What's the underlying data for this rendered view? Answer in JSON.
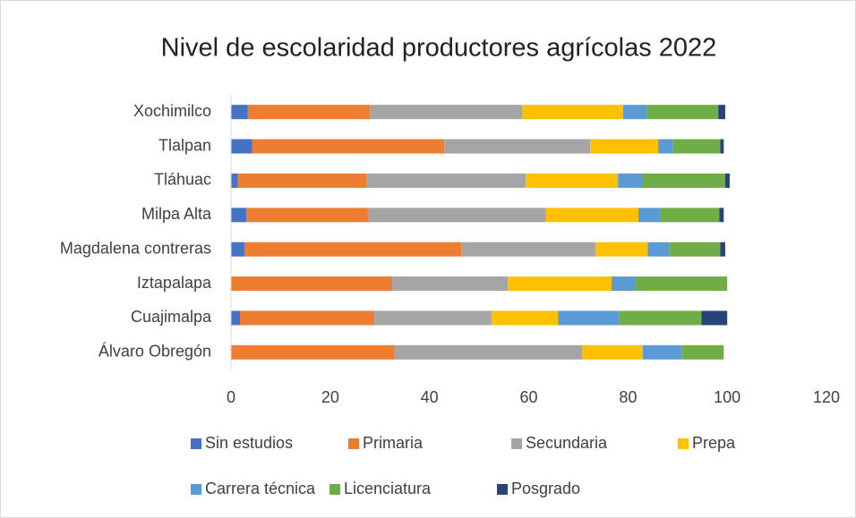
{
  "chart_data": {
    "type": "stacked-barh",
    "title": "Nivel de escolaridad productores agrícolas 2022",
    "categories": [
      "Xochimilco",
      "Tlalpan",
      "Tláhuac",
      "Milpa Alta",
      "Magdalena contreras",
      "Iztapalapa",
      "Cuajimalpa",
      "Álvaro Obregón"
    ],
    "series": [
      {
        "name": "Sin estudios",
        "color": "#4472c4",
        "values": [
          3.4,
          4.3,
          1.4,
          3.1,
          2.7,
          0,
          1.8,
          0
        ]
      },
      {
        "name": "Primaria",
        "color": "#ed7d31",
        "values": [
          24.6,
          38.7,
          25.9,
          24.5,
          43.7,
          32.5,
          27.1,
          33
        ]
      },
      {
        "name": "Secundaria",
        "color": "#a5a5a5",
        "values": [
          30.7,
          29.4,
          32.1,
          35.9,
          27.1,
          23.3,
          23.6,
          37.8
        ]
      },
      {
        "name": "Prepa",
        "color": "#ffc000",
        "values": [
          20.3,
          13.7,
          18.6,
          18.6,
          10.5,
          20.9,
          13.4,
          12.2
        ]
      },
      {
        "name": "Carrera técnica",
        "color": "#5b9bd5",
        "values": [
          4.8,
          2.9,
          5,
          4.5,
          4.4,
          4.7,
          12.3,
          7.8
        ]
      },
      {
        "name": "Licenciatura",
        "color": "#70ad47",
        "values": [
          14.4,
          9.6,
          16.6,
          11.8,
          10.2,
          18.6,
          16.6,
          8.5
        ]
      },
      {
        "name": "Posgrado",
        "color": "#264478",
        "values": [
          1.4,
          0.7,
          0.9,
          0.9,
          1,
          0,
          5.2,
          0
        ]
      }
    ],
    "xlim": [
      0,
      120
    ],
    "xticks": [
      0,
      20,
      40,
      60,
      80,
      100,
      120
    ],
    "grid": false,
    "legend": "bottom"
  }
}
